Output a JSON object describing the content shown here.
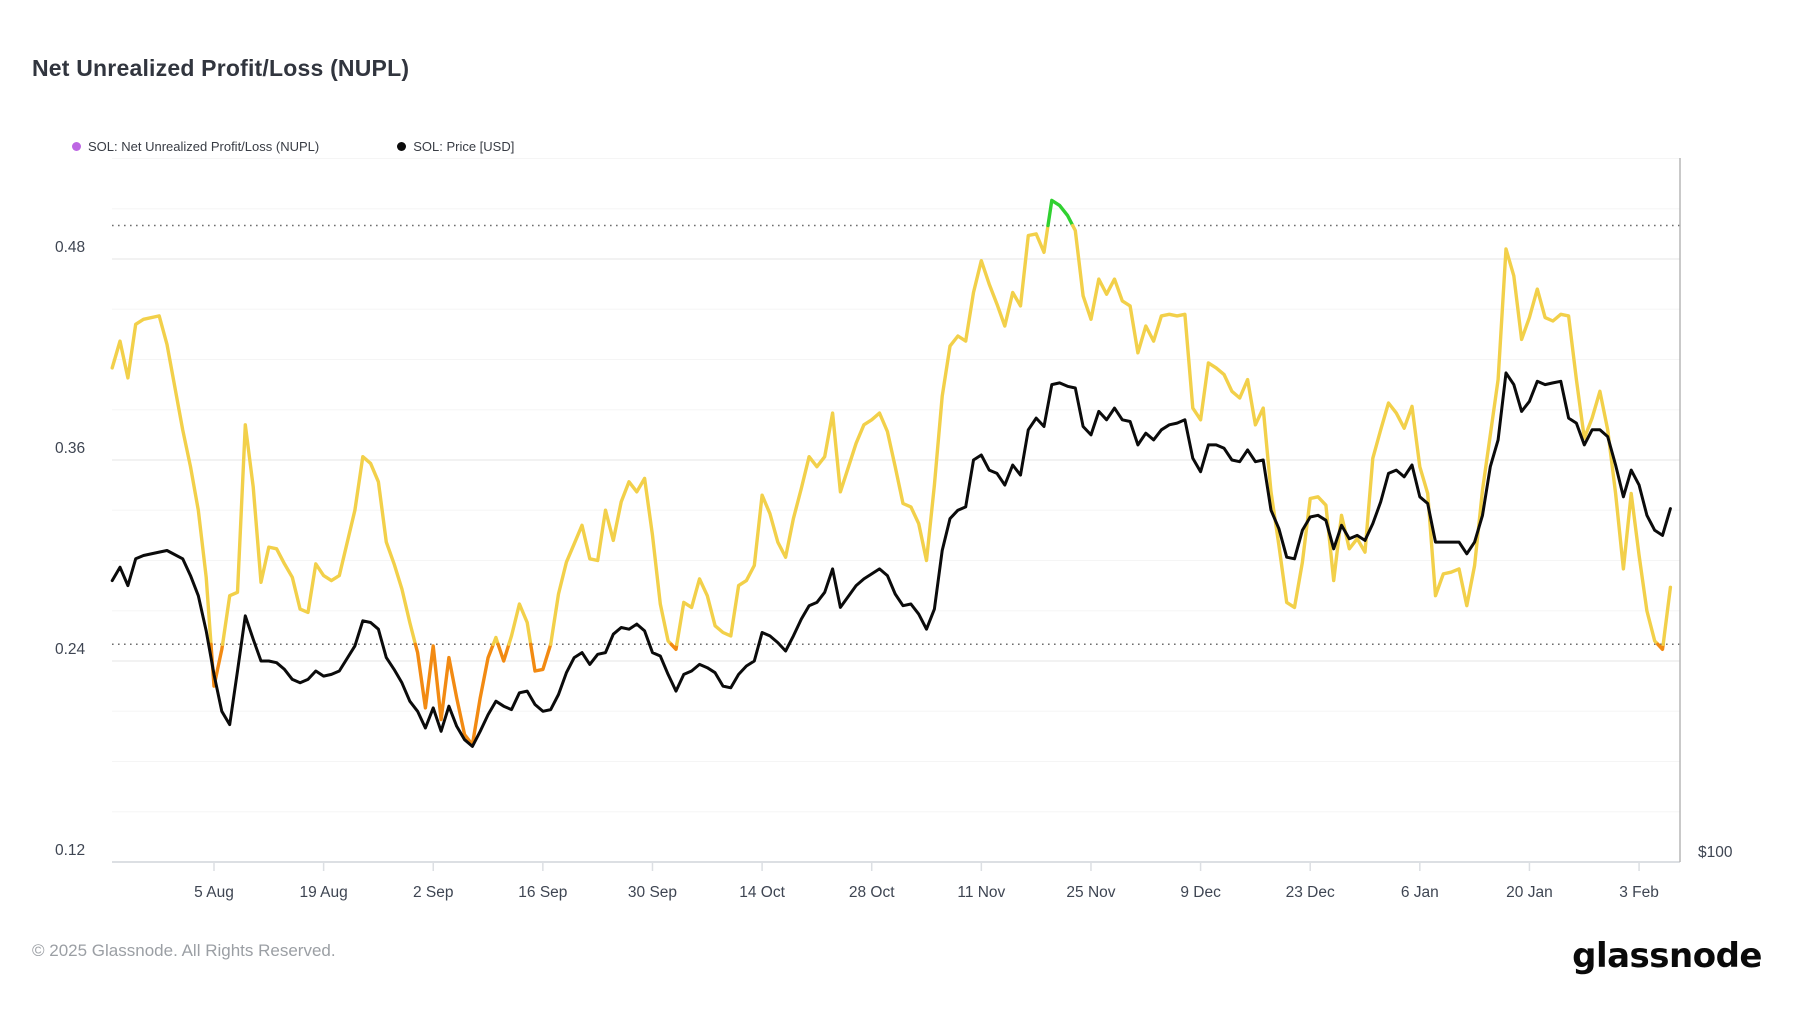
{
  "page": {
    "title": "Net Unrealized Profit/Loss (NUPL)",
    "footer_copyright": "© 2025 Glassnode. All Rights Reserved.",
    "brand_wordmark": "glassnode"
  },
  "legend": [
    {
      "label": "SOL: Net Unrealized Profit/Loss (NUPL)",
      "dot_color": "#bd66e3"
    },
    {
      "label": "SOL: Price [USD]",
      "dot_color": "#0b0b0b"
    }
  ],
  "chart_data": {
    "type": "line",
    "title": "Net Unrealized Profit/Loss (NUPL)",
    "x_axis": {
      "tick_labels": [
        "5 Aug",
        "19 Aug",
        "2 Sep",
        "16 Sep",
        "30 Sep",
        "14 Oct",
        "28 Oct",
        "11 Nov",
        "25 Nov",
        "9 Dec",
        "23 Dec",
        "6 Jan",
        "20 Jan",
        "3 Feb"
      ]
    },
    "y_axis_left": {
      "tick_labels": [
        "0.48",
        "0.36",
        "0.24",
        "0.12"
      ],
      "tick_values": [
        0.48,
        0.36,
        0.24,
        0.12
      ],
      "range": [
        0.12,
        0.54
      ],
      "grid": "light horizontal gridlines, dotted guide lines at 0.25 and 0.50"
    },
    "y_axis_right": {
      "label": "$100",
      "maps_to_left_axis_value": 0.12
    },
    "thresholds": {
      "dotted_values": [
        0.25,
        0.5
      ]
    },
    "colors": {
      "nupl_above_050": "#30d130",
      "nupl_025_to_050": "#f2d04a",
      "nupl_below_025": "#f28a12",
      "price_line": "#0b0b0b",
      "grid_major": "#ebebeb",
      "grid_minor": "#f5f5f5",
      "dotted_line": "#6e6e6e",
      "axis_text": "#3e4552",
      "axis_line": "#dcdfe3",
      "right_border": "#b7b7b7"
    },
    "legend_position": "top-left",
    "dates": [
      "23 Jul",
      "24 Jul",
      "25 Jul",
      "26 Jul",
      "27 Jul",
      "29 Jul",
      "30 Jul",
      "1 Aug",
      "2 Aug",
      "3 Aug",
      "4 Aug",
      "5 Aug",
      "6 Aug",
      "7 Aug",
      "8 Aug",
      "9 Aug",
      "10 Aug",
      "11 Aug",
      "12 Aug",
      "13 Aug",
      "14 Aug",
      "15 Aug",
      "16 Aug",
      "17 Aug",
      "18 Aug",
      "19 Aug",
      "20 Aug",
      "21 Aug",
      "23 Aug",
      "24 Aug",
      "25 Aug",
      "26 Aug",
      "27 Aug",
      "28 Aug",
      "29 Aug",
      "30 Aug",
      "31 Aug",
      "1 Sep",
      "2 Sep",
      "3 Sep",
      "4 Sep",
      "5 Sep",
      "6 Sep",
      "7 Sep",
      "8 Sep",
      "9 Sep",
      "10 Sep",
      "11 Sep",
      "12 Sep",
      "13 Sep",
      "14 Sep",
      "15 Sep",
      "16 Sep",
      "17 Sep",
      "18 Sep",
      "19 Sep",
      "20 Sep",
      "21 Sep",
      "22 Sep",
      "23 Sep",
      "24 Sep",
      "25 Sep",
      "26 Sep",
      "27 Sep",
      "28 Sep",
      "29 Sep",
      "30 Sep",
      "1 Oct",
      "2 Oct",
      "3 Oct",
      "4 Oct",
      "5 Oct",
      "6 Oct",
      "7 Oct",
      "8 Oct",
      "9 Oct",
      "10 Oct",
      "11 Oct",
      "12 Oct",
      "13 Oct",
      "14 Oct",
      "15 Oct",
      "16 Oct",
      "17 Oct",
      "18 Oct",
      "19 Oct",
      "20 Oct",
      "21 Oct",
      "22 Oct",
      "23 Oct",
      "24 Oct",
      "26 Oct",
      "27 Oct",
      "28 Oct",
      "29 Oct",
      "30 Oct",
      "31 Oct",
      "1 Nov",
      "2 Nov",
      "3 Nov",
      "4 Nov",
      "5 Nov",
      "6 Nov",
      "7 Nov",
      "8 Nov",
      "9 Nov",
      "10 Nov",
      "11 Nov",
      "12 Nov",
      "13 Nov",
      "14 Nov",
      "15 Nov",
      "16 Nov",
      "17 Nov",
      "18 Nov",
      "19 Nov",
      "20 Nov",
      "21 Nov",
      "22 Nov",
      "23 Nov",
      "24 Nov",
      "25 Nov",
      "26 Nov",
      "27 Nov",
      "28 Nov",
      "29 Nov",
      "30 Nov",
      "1 Dec",
      "2 Dec",
      "3 Dec",
      "4 Dec",
      "5 Dec",
      "6 Dec",
      "7 Dec",
      "8 Dec",
      "9 Dec",
      "10 Dec",
      "11 Dec",
      "12 Dec",
      "13 Dec",
      "14 Dec",
      "15 Dec",
      "16 Dec",
      "17 Dec",
      "18 Dec",
      "19 Dec",
      "20 Dec",
      "21 Dec",
      "22 Dec",
      "23 Dec",
      "24 Dec",
      "25 Dec",
      "26 Dec",
      "27 Dec",
      "28 Dec",
      "29 Dec",
      "30 Dec",
      "31 Dec",
      "1 Jan",
      "2 Jan",
      "3 Jan",
      "4 Jan",
      "5 Jan",
      "6 Jan",
      "7 Jan",
      "8 Jan",
      "9 Jan",
      "10 Jan",
      "11 Jan",
      "12 Jan",
      "13 Jan",
      "14 Jan",
      "15 Jan",
      "16 Jan",
      "17 Jan",
      "18 Jan",
      "19 Jan",
      "20 Jan",
      "21 Jan",
      "22 Jan",
      "23 Jan",
      "24 Jan",
      "25 Jan",
      "26 Jan",
      "27 Jan",
      "28 Jan",
      "29 Jan",
      "30 Jan",
      "31 Jan",
      "1 Feb",
      "2 Feb",
      "3 Feb",
      "4 Feb",
      "5 Feb",
      "6 Feb",
      "7 Feb"
    ],
    "series": [
      {
        "name": "SOL: Net Unrealized Profit/Loss (NUPL)",
        "values": [
          0.415,
          0.431,
          0.409,
          0.441,
          0.444,
          0.446,
          0.429,
          0.378,
          0.356,
          0.33,
          0.29,
          0.225,
          0.247,
          0.279,
          0.281,
          0.381,
          0.344,
          0.287,
          0.308,
          0.307,
          0.298,
          0.29,
          0.271,
          0.269,
          0.298,
          0.291,
          0.288,
          0.291,
          0.33,
          0.362,
          0.358,
          0.347,
          0.311,
          0.298,
          0.283,
          0.263,
          0.245,
          0.212,
          0.249,
          0.205,
          0.242,
          0.218,
          0.196,
          0.19,
          0.218,
          0.242,
          0.254,
          0.24,
          0.255,
          0.274,
          0.263,
          0.234,
          0.235,
          0.25,
          0.28,
          0.299,
          0.31,
          0.321,
          0.301,
          0.3,
          0.33,
          0.312,
          0.335,
          0.347,
          0.341,
          0.349,
          0.315,
          0.274,
          0.252,
          0.247,
          0.275,
          0.272,
          0.289,
          0.279,
          0.261,
          0.257,
          0.255,
          0.285,
          0.288,
          0.297,
          0.339,
          0.328,
          0.311,
          0.302,
          0.325,
          0.343,
          0.362,
          0.356,
          0.362,
          0.388,
          0.341,
          0.37,
          0.381,
          0.384,
          0.388,
          0.377,
          0.356,
          0.334,
          0.332,
          0.322,
          0.3,
          0.345,
          0.398,
          0.428,
          0.434,
          0.431,
          0.46,
          0.479,
          0.465,
          0.453,
          0.44,
          0.46,
          0.452,
          0.494,
          0.495,
          0.484,
          0.515,
          0.512,
          0.506,
          0.497,
          0.458,
          0.444,
          0.468,
          0.459,
          0.468,
          0.455,
          0.452,
          0.424,
          0.44,
          0.431,
          0.446,
          0.447,
          0.446,
          0.447,
          0.391,
          0.384,
          0.418,
          0.415,
          0.411,
          0.401,
          0.397,
          0.408,
          0.381,
          0.391,
          0.341,
          0.309,
          0.275,
          0.272,
          0.299,
          0.337,
          0.338,
          0.333,
          0.288,
          0.327,
          0.307,
          0.313,
          0.305,
          0.361,
          0.378,
          0.394,
          0.388,
          0.379,
          0.392,
          0.356,
          0.34,
          0.279,
          0.292,
          0.293,
          0.295,
          0.273,
          0.297,
          0.342,
          0.375,
          0.408,
          0.486,
          0.47,
          0.432,
          0.445,
          0.462,
          0.445,
          0.443,
          0.447,
          0.446,
          0.408,
          0.373,
          0.385,
          0.401,
          0.378,
          0.34,
          0.295,
          0.34,
          0.303,
          0.27,
          0.252,
          0.247,
          0.284
        ]
      },
      {
        "name": "SOL: Price [USD]",
        "note": "plotted against hidden USD axis; only $100 is labeled (at bottom gridline). Values below are as drawn on the left-axis scale.",
        "values": [
          0.288,
          0.296,
          0.285,
          0.301,
          0.303,
          0.305,
          0.306,
          0.301,
          0.291,
          0.279,
          0.258,
          0.232,
          0.21,
          0.202,
          0.234,
          0.267,
          0.253,
          0.24,
          0.24,
          0.239,
          0.235,
          0.229,
          0.227,
          0.229,
          0.234,
          0.231,
          0.232,
          0.234,
          0.249,
          0.264,
          0.263,
          0.259,
          0.242,
          0.235,
          0.227,
          0.216,
          0.21,
          0.2,
          0.212,
          0.198,
          0.213,
          0.201,
          0.193,
          0.189,
          0.198,
          0.208,
          0.216,
          0.213,
          0.211,
          0.221,
          0.222,
          0.214,
          0.21,
          0.211,
          0.22,
          0.233,
          0.242,
          0.245,
          0.238,
          0.244,
          0.245,
          0.256,
          0.26,
          0.259,
          0.262,
          0.258,
          0.245,
          0.243,
          0.232,
          0.222,
          0.232,
          0.234,
          0.238,
          0.236,
          0.233,
          0.225,
          0.224,
          0.232,
          0.237,
          0.24,
          0.257,
          0.255,
          0.251,
          0.246,
          0.255,
          0.265,
          0.273,
          0.275,
          0.281,
          0.295,
          0.272,
          0.285,
          0.289,
          0.292,
          0.295,
          0.291,
          0.28,
          0.273,
          0.274,
          0.268,
          0.259,
          0.271,
          0.306,
          0.325,
          0.33,
          0.332,
          0.36,
          0.363,
          0.354,
          0.352,
          0.345,
          0.357,
          0.351,
          0.378,
          0.385,
          0.38,
          0.405,
          0.406,
          0.404,
          0.403,
          0.38,
          0.375,
          0.389,
          0.384,
          0.391,
          0.384,
          0.383,
          0.369,
          0.376,
          0.372,
          0.378,
          0.381,
          0.382,
          0.384,
          0.361,
          0.353,
          0.369,
          0.369,
          0.367,
          0.36,
          0.359,
          0.366,
          0.359,
          0.36,
          0.33,
          0.319,
          0.302,
          0.301,
          0.318,
          0.326,
          0.327,
          0.324,
          0.307,
          0.321,
          0.313,
          0.315,
          0.312,
          0.322,
          0.335,
          0.352,
          0.354,
          0.35,
          0.357,
          0.338,
          0.334,
          0.311,
          0.311,
          0.311,
          0.311,
          0.304,
          0.311,
          0.327,
          0.356,
          0.372,
          0.412,
          0.405,
          0.389,
          0.395,
          0.407,
          0.405,
          0.406,
          0.407,
          0.385,
          0.382,
          0.369,
          0.378,
          0.378,
          0.374,
          0.357,
          0.338,
          0.354,
          0.345,
          0.327,
          0.318,
          0.315,
          0.331
        ]
      }
    ]
  }
}
